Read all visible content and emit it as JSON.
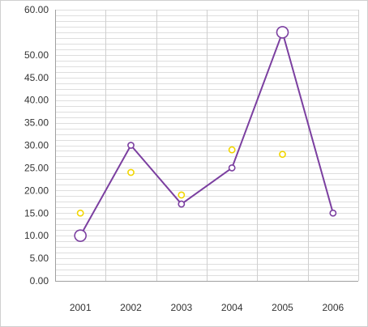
{
  "chart_data": {
    "type": "line",
    "categories": [
      "2001",
      "2002",
      "2003",
      "2004",
      "2005",
      "2006"
    ],
    "y_tick_labels": [
      "0.00",
      "5.00",
      "10.00",
      "15.00",
      "20.00",
      "25.00",
      "30.00",
      "35.00",
      "40.00",
      "45.00",
      "50.00",
      "60.00"
    ],
    "y_tick_values": [
      0,
      5,
      10,
      15,
      20,
      25,
      30,
      35,
      40,
      45,
      50,
      60
    ],
    "ylim": [
      0,
      60
    ],
    "grid": true,
    "series": [
      {
        "values": [
          10,
          30,
          17,
          25,
          55,
          15
        ],
        "color": "#7b3fa0",
        "marker": "open-circle",
        "line": true
      },
      {
        "values": [
          15,
          24,
          19,
          29,
          28,
          null
        ],
        "color": "#f2d600",
        "marker": "open-circle",
        "line": false
      }
    ]
  }
}
